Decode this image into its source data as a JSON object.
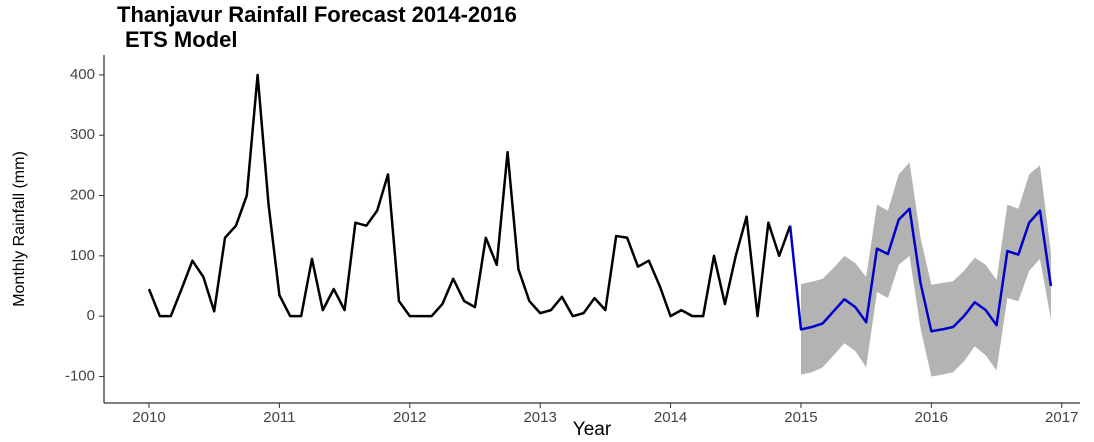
{
  "chart_data": {
    "type": "line",
    "title": "Thanjavur Rainfall Forecast 2014-2016",
    "subtitle": "ETS Model",
    "x_label": "Year",
    "y_label": "Monthly Rainfall (mm)",
    "xlim": [
      2009.655,
      2017.14
    ],
    "ylim": [
      -144,
      433
    ],
    "xticks": [
      2010,
      2011,
      2012,
      2013,
      2014,
      2015,
      2016,
      2017
    ],
    "yticks": [
      -100,
      0,
      100,
      200,
      300,
      400
    ],
    "grid": false,
    "series": [
      {
        "color": "#000000",
        "x": [
          2010,
          2010.083,
          2010.167,
          2010.25,
          2010.333,
          2010.417,
          2010.5,
          2010.583,
          2010.667,
          2010.75,
          2010.833,
          2010.917,
          2011,
          2011.083,
          2011.167,
          2011.25,
          2011.333,
          2011.417,
          2011.5,
          2011.583,
          2011.667,
          2011.75,
          2011.833,
          2011.917,
          2012,
          2012.083,
          2012.167,
          2012.25,
          2012.333,
          2012.417,
          2012.5,
          2012.583,
          2012.667,
          2012.75,
          2012.833,
          2012.917,
          2013,
          2013.083,
          2013.167,
          2013.25,
          2013.333,
          2013.417,
          2013.5,
          2013.583,
          2013.667,
          2013.75,
          2013.833,
          2013.917,
          2014,
          2014.083,
          2014.167,
          2014.25,
          2014.333,
          2014.417,
          2014.5,
          2014.583,
          2014.667,
          2014.75,
          2014.833,
          2014.917
        ],
        "values": [
          45,
          0,
          0,
          45,
          92,
          65,
          8,
          130,
          150,
          200,
          400,
          185,
          35,
          0,
          0,
          95,
          10,
          45,
          10,
          155,
          150,
          175,
          235,
          25,
          0,
          0,
          0,
          20,
          62,
          25,
          15,
          130,
          85,
          272,
          78,
          25,
          5,
          10,
          32,
          0,
          5,
          30,
          10,
          133,
          130,
          82,
          92,
          50,
          0,
          10,
          0,
          0,
          100,
          20,
          100,
          165,
          0,
          155,
          100,
          150
        ]
      },
      {
        "color": "#0000cc",
        "x": [
          2014.917,
          2015,
          2015.083,
          2015.167,
          2015.25,
          2015.333,
          2015.417,
          2015.5,
          2015.583,
          2015.667,
          2015.75,
          2015.833,
          2015.917,
          2016,
          2016.083,
          2016.167,
          2016.25,
          2016.333,
          2016.417,
          2016.5,
          2016.583,
          2016.667,
          2016.75,
          2016.833,
          2016.917
        ],
        "values": [
          150,
          -22,
          -18,
          -12,
          8,
          28,
          15,
          -10,
          112,
          103,
          160,
          178,
          55,
          -25,
          -22,
          -18,
          0,
          23,
          10,
          -15,
          108,
          102,
          155,
          175,
          50
        ]
      }
    ],
    "band": {
      "color": "#b3b3b3",
      "x": [
        2015,
        2015.083,
        2015.167,
        2015.25,
        2015.333,
        2015.417,
        2015.5,
        2015.583,
        2015.667,
        2015.75,
        2015.833,
        2015.917,
        2016,
        2016.083,
        2016.167,
        2016.25,
        2016.333,
        2016.417,
        2016.5,
        2016.583,
        2016.667,
        2016.75,
        2016.833,
        2016.917
      ],
      "lower": [
        -97,
        -93,
        -85,
        -65,
        -45,
        -58,
        -85,
        40,
        30,
        85,
        100,
        -20,
        -100,
        -97,
        -93,
        -75,
        -50,
        -65,
        -90,
        30,
        25,
        75,
        95,
        -5
      ],
      "upper": [
        53,
        57,
        62,
        80,
        100,
        88,
        65,
        185,
        175,
        235,
        255,
        130,
        52,
        55,
        58,
        75,
        97,
        85,
        60,
        185,
        178,
        235,
        250,
        105
      ]
    }
  }
}
